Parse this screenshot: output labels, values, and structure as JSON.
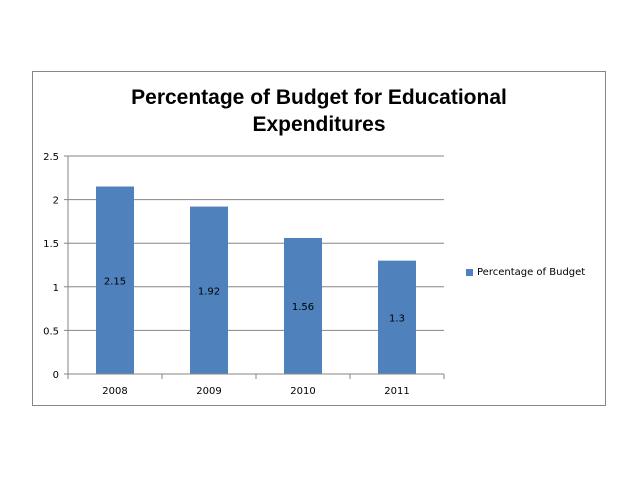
{
  "chart_data": {
    "type": "bar",
    "title_line1": "Percentage of Budget for Educational",
    "title_line2": "Expenditures",
    "categories": [
      "2008",
      "2009",
      "2010",
      "2011"
    ],
    "series": [
      {
        "name": "Percentage of Budget",
        "values": [
          2.15,
          1.92,
          1.56,
          1.3
        ],
        "color": "#4f81bd"
      }
    ],
    "data_labels": [
      "2.15",
      "1.92",
      "1.56",
      "1.3"
    ],
    "yticks": [
      "0",
      "0.5",
      "1",
      "1.5",
      "2",
      "2.5"
    ],
    "ylim": [
      0,
      2.5
    ],
    "xlabel": "",
    "ylabel": "",
    "grid": true,
    "legend_position": "right"
  }
}
